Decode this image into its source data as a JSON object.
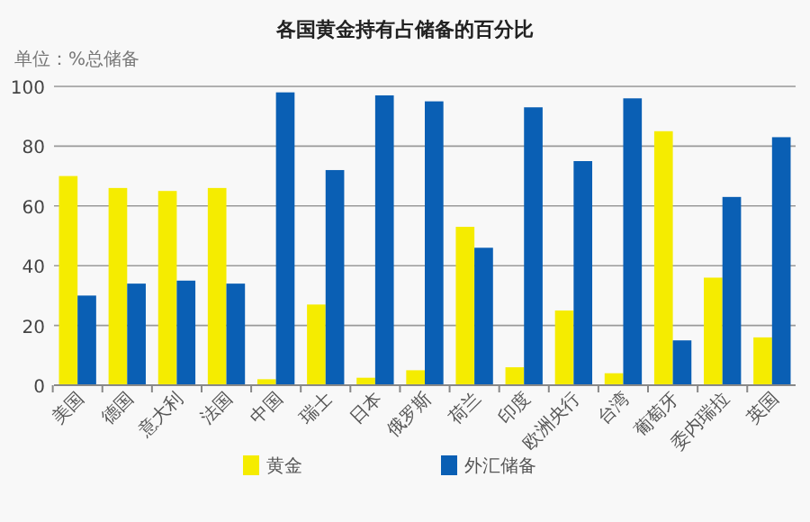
{
  "chart_data": {
    "type": "bar",
    "title": "各国黄金持有占储备的百分比",
    "ylabel": "单位：%总储备",
    "categories": [
      "美国",
      "德国",
      "意大利",
      "法国",
      "中国",
      "瑞士",
      "日本",
      "俄罗斯",
      "荷兰",
      "印度",
      "欧洲央行",
      "台湾",
      "葡萄牙",
      "委内瑞拉",
      "英国"
    ],
    "series": [
      {
        "name": "黄金",
        "color": "#f5ec00",
        "values": [
          70,
          66,
          65,
          66,
          2,
          27,
          2.5,
          5,
          53,
          6,
          25,
          4,
          85,
          36,
          16
        ]
      },
      {
        "name": "外汇储备",
        "color": "#0a5fb4",
        "values": [
          30,
          34,
          35,
          34,
          98,
          72,
          97,
          95,
          46,
          93,
          75,
          96,
          15,
          63,
          83
        ]
      }
    ],
    "ylim": [
      0,
      100
    ],
    "yticks": [
      0,
      20,
      40,
      60,
      80,
      100
    ],
    "grid": "y",
    "legend": "bottom"
  }
}
